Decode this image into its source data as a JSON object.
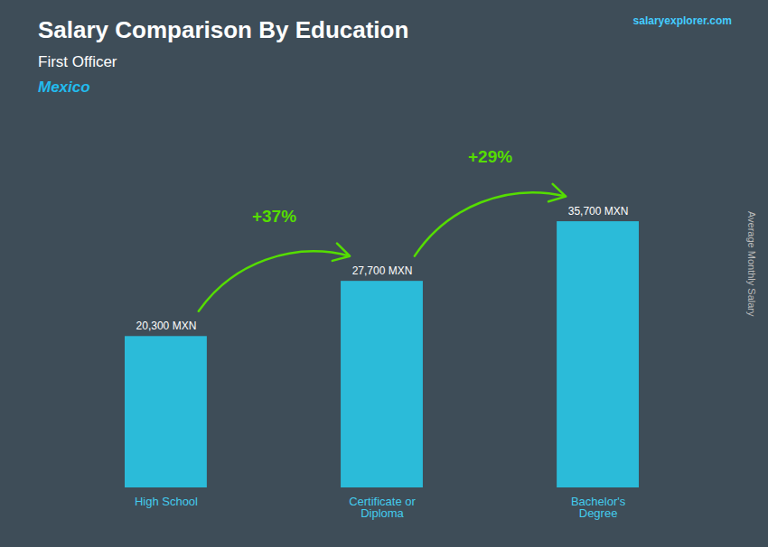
{
  "chart_data": {
    "type": "bar",
    "title": "Salary Comparison By Education",
    "subtitle": "First Officer",
    "country": "Mexico",
    "source": "salaryexplorer.com",
    "ylabel": "Average Monthly Salary",
    "categories": [
      "High School",
      "Certificate or\nDiploma",
      "Bachelor's\nDegree"
    ],
    "values": [
      20300,
      27700,
      35700
    ],
    "value_labels": [
      "20,300 MXN",
      "27,700 MXN",
      "35,700 MXN"
    ],
    "data_labels": true,
    "color": "#29c8e8",
    "ylim": [
      0,
      46000
    ],
    "tick_labels": "x",
    "annotations": [
      {
        "text": "+37%",
        "from": "High School",
        "to": "Certificate or\nDiploma",
        "color": "#55dd00"
      },
      {
        "text": "+29%",
        "from": "Certificate or\nDiploma",
        "to": "Bachelor's\nDegree",
        "color": "#55dd00"
      }
    ]
  }
}
